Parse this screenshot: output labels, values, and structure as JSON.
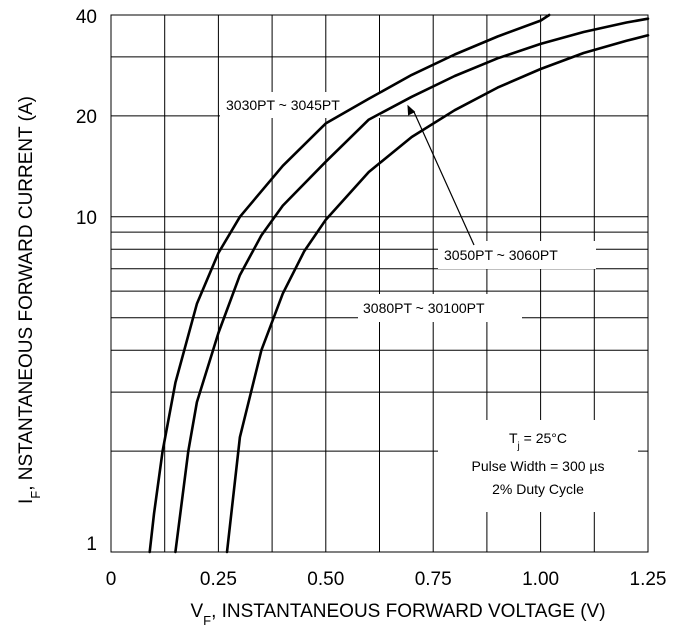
{
  "chart_data": {
    "type": "line",
    "title": "",
    "xlabel_main": "V",
    "xlabel_sub": "F",
    "xlabel_rest": ", INSTANTANEOUS FORWARD VOLTAGE (V)",
    "ylabel_main": "I",
    "ylabel_sub": "F",
    "ylabel_rest": ", NSTANTANEOUS FORWARD CURRENT (A)",
    "xlim": [
      0,
      1.25
    ],
    "ylim": [
      1,
      40
    ],
    "yscale": "log",
    "x_ticks": [
      {
        "value": 0,
        "label": "0"
      },
      {
        "value": 0.25,
        "label": "0.25"
      },
      {
        "value": 0.5,
        "label": "0.50"
      },
      {
        "value": 0.75,
        "label": "0.75"
      },
      {
        "value": 1.0,
        "label": "1.00"
      },
      {
        "value": 1.25,
        "label": "1.25"
      }
    ],
    "y_ticks": [
      {
        "value": 1,
        "label": "1"
      },
      {
        "value": 10,
        "label": "10"
      },
      {
        "value": 20,
        "label": "20"
      },
      {
        "value": 40,
        "label": "40"
      }
    ],
    "grid": true,
    "series": [
      {
        "name": "3030PT ~ 3045PT",
        "x": [
          0.09,
          0.1,
          0.12,
          0.15,
          0.2,
          0.25,
          0.3,
          0.4,
          0.5,
          0.6,
          0.7,
          0.8,
          0.9,
          1.0,
          1.02
        ],
        "y": [
          1.0,
          1.3,
          2.0,
          3.2,
          5.5,
          7.8,
          10.0,
          14.2,
          19.0,
          22.5,
          26.5,
          30.5,
          34.5,
          38.5,
          40.0
        ]
      },
      {
        "name": "3050PT ~ 3060PT",
        "x": [
          0.15,
          0.18,
          0.2,
          0.25,
          0.3,
          0.35,
          0.4,
          0.5,
          0.6,
          0.7,
          0.8,
          0.9,
          1.0,
          1.1,
          1.2,
          1.25
        ],
        "y": [
          1.0,
          2.0,
          2.8,
          4.5,
          6.7,
          8.8,
          10.8,
          14.6,
          19.5,
          22.8,
          26.3,
          29.7,
          32.8,
          35.6,
          38.0,
          39.0
        ]
      },
      {
        "name": "3080PT ~ 30100PT",
        "x": [
          0.27,
          0.3,
          0.35,
          0.4,
          0.45,
          0.5,
          0.6,
          0.7,
          0.8,
          0.9,
          1.0,
          1.1,
          1.2,
          1.25
        ],
        "y": [
          1.0,
          2.2,
          4.0,
          5.9,
          7.9,
          9.8,
          13.6,
          17.3,
          20.8,
          24.3,
          27.6,
          30.8,
          33.5,
          34.8
        ]
      }
    ],
    "annotations": [
      {
        "series": 1,
        "pointer_x": 0.69,
        "pointer_y": 21.6
      }
    ],
    "conditions": {
      "tj_main": "T",
      "tj_sub": "j",
      "tj_rest": " =  25°C",
      "pulse": "Pulse Width =  300 µs",
      "duty": "2% Duty Cycle"
    }
  }
}
